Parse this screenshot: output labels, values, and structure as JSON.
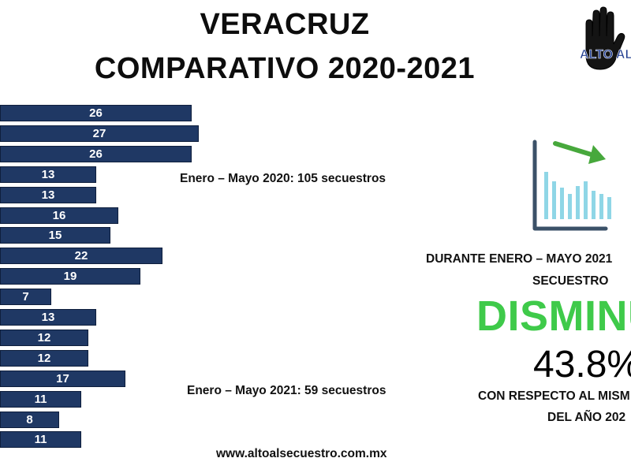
{
  "header": {
    "title_line1": "VERACRUZ",
    "title_line2": "COMPARATIVO 2020-2021"
  },
  "chart_data": {
    "type": "bar",
    "orientation": "horizontal",
    "values": [
      26,
      27,
      26,
      13,
      13,
      16,
      15,
      22,
      19,
      7,
      13,
      12,
      12,
      17,
      11,
      8,
      11
    ],
    "groups": [
      {
        "label": "Enero – Mayo 2020: 105 secuestros",
        "start": 0,
        "count": 9
      },
      {
        "label": "Enero – Mayo 2021: 59 secuestros",
        "start": 9,
        "count": 8
      }
    ],
    "xlim": [
      0,
      27
    ],
    "bar_color": "#1f3864",
    "label_color": "#ffffff"
  },
  "summary": {
    "line1": "DURANTE ENERO – MAYO 2021",
    "line2": "SECUESTRO",
    "headline": "DISMINU",
    "headline_color": "#3fca4a",
    "percent": "43.8%",
    "line3": "CON RESPECTO AL MISM",
    "line4": "DEL AÑO 202"
  },
  "logo": {
    "text": "ALTO AL",
    "icon": "raised-hand-icon"
  },
  "trend_icon": "downward-trend-chart-icon",
  "footer": {
    "url": "www.altoalsecuestro.com.mx"
  }
}
